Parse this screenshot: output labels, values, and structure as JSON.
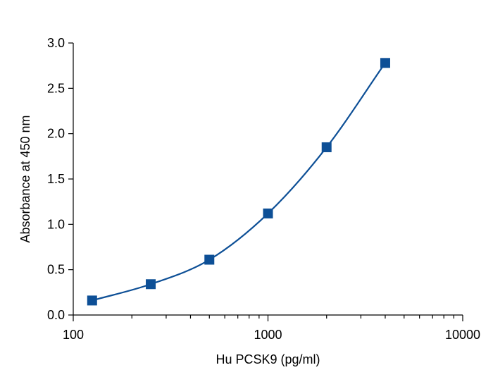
{
  "chart_data": {
    "type": "scatter",
    "title": "",
    "xlabel": "Hu PCSK9 (pg/ml)",
    "ylabel": "Absorbance at 450 nm",
    "xscale": "log",
    "xlim": [
      100,
      10000
    ],
    "ylim": [
      0,
      3.0
    ],
    "x_ticks": [
      100,
      1000,
      10000
    ],
    "x_tick_labels": [
      "100",
      "1000",
      "10000"
    ],
    "y_ticks": [
      0,
      0.5,
      1.0,
      1.5,
      2.0,
      2.5,
      3.0
    ],
    "y_tick_labels": [
      "0.0",
      "0.5",
      "1.0",
      "1.5",
      "2.0",
      "2.5",
      "3.0"
    ],
    "grid": false,
    "legend": "none",
    "series": [
      {
        "x": [
          125,
          250,
          500,
          1000,
          2000,
          4000
        ],
        "y": [
          0.16,
          0.34,
          0.61,
          1.12,
          1.85,
          2.78
        ],
        "marker": "square",
        "fitted_curve": true
      }
    ],
    "colors": {
      "series": "#0d4f96",
      "axis": "#000000"
    }
  }
}
